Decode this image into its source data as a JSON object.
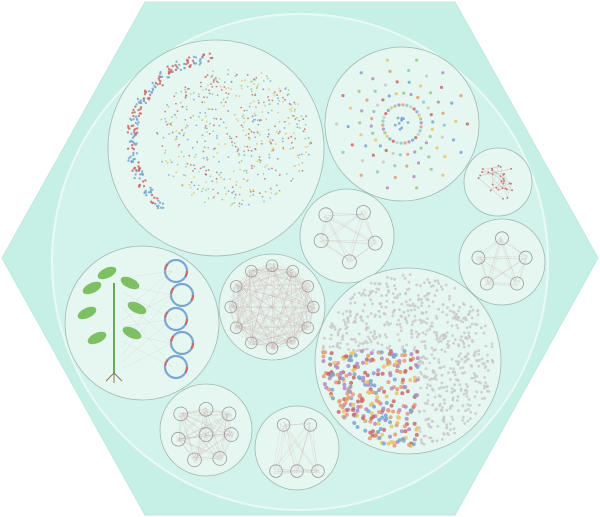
{
  "colors": {
    "hexagon_fill": "#c6efe6",
    "hexagon_edge": "#bfe9df",
    "inner_circle_fill": "#d2f3eb",
    "inner_circle_stroke": "#e9faf5",
    "bubble_fill": "#e6f7f1",
    "bubble_stroke": "#9fb9b1",
    "edge": "#c9a9a6",
    "node_stroke": "#9a9a9a",
    "palette": [
      "#c86b6b",
      "#7aa6cf",
      "#e7c36a",
      "#9bc78e",
      "#b58ac2",
      "#e59a73",
      "#8cc9c2",
      "#c9c9c9"
    ]
  },
  "diagram": {
    "groups": [
      {
        "id": "g1",
        "kind": "large-network"
      },
      {
        "id": "g2",
        "kind": "concentric-dots"
      },
      {
        "id": "g3",
        "kind": "small-network"
      },
      {
        "id": "g4",
        "kind": "hub-clusters"
      },
      {
        "id": "g5",
        "kind": "clique-network"
      },
      {
        "id": "g6",
        "kind": "plant-and-rings"
      },
      {
        "id": "g7",
        "kind": "ring-of-clusters"
      },
      {
        "id": "g8",
        "kind": "dense-mosaic"
      },
      {
        "id": "g9",
        "kind": "grid-clusters"
      },
      {
        "id": "g10",
        "kind": "bipartite-clusters"
      }
    ],
    "icons": [
      "plant-icon"
    ]
  }
}
